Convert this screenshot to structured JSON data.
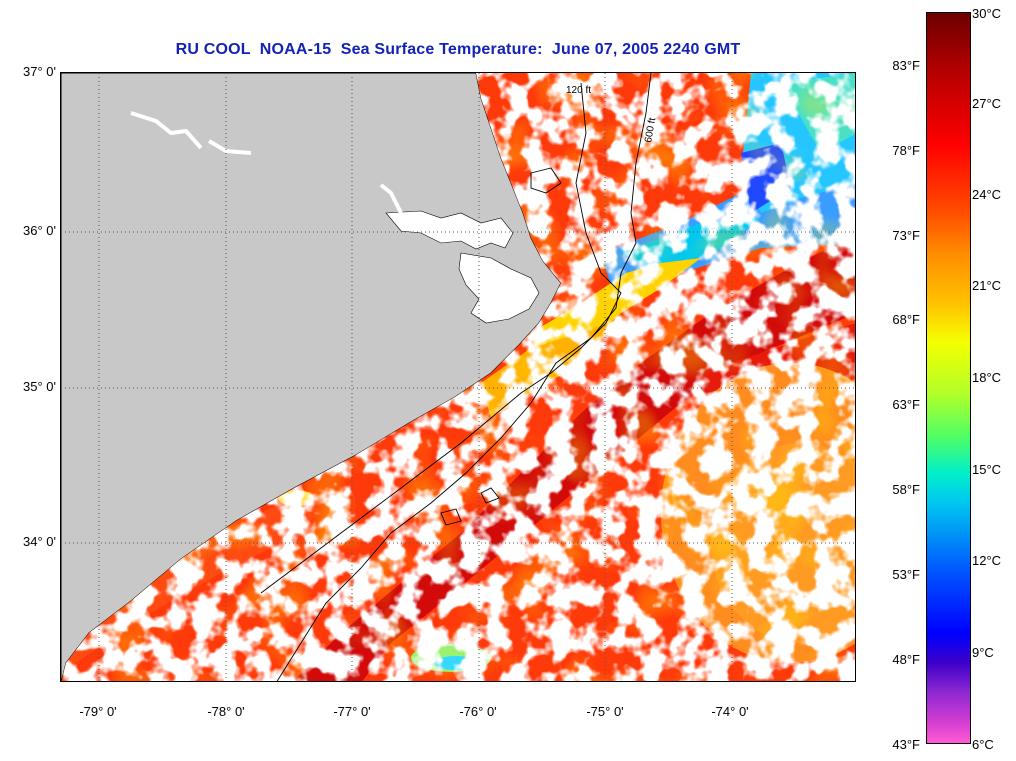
{
  "title": "RU COOL  NOAA-15  Sea Surface Temperature:  June 07, 2005 2240 GMT",
  "latitude_labels": [
    "37° 0'",
    "36° 0'",
    "35° 0'",
    "34° 0'"
  ],
  "longitude_labels": [
    "-79° 0'",
    "-78° 0'",
    "-77° 0'",
    "-76° 0'",
    "-75° 0'",
    "-74° 0'"
  ],
  "contour_labels": [
    "120 ft",
    "600 ft"
  ],
  "colorbar": {
    "fahrenheit_labels": [
      "83°F",
      "78°F",
      "73°F",
      "68°F",
      "63°F",
      "58°F",
      "53°F",
      "48°F",
      "43°F"
    ],
    "celsius_labels": [
      "30°C",
      "27°C",
      "24°C",
      "21°C",
      "18°C",
      "15°C",
      "12°C",
      "9°C",
      "6°C"
    ],
    "range_celsius": [
      6,
      30
    ],
    "colors": [
      "#6e0000",
      "#ff0000",
      "#ff8c00",
      "#f5ff00",
      "#50ff64",
      "#00c8f0",
      "#0000ff",
      "#8c28d2",
      "#ff5ad2"
    ]
  },
  "map_colors": {
    "land": "#c8c8c8",
    "cloud": "#ffffff",
    "warm_water": "#ff3a0a",
    "gulf_stream": "#d20a0a",
    "cool_shelf": "#ffd200"
  }
}
